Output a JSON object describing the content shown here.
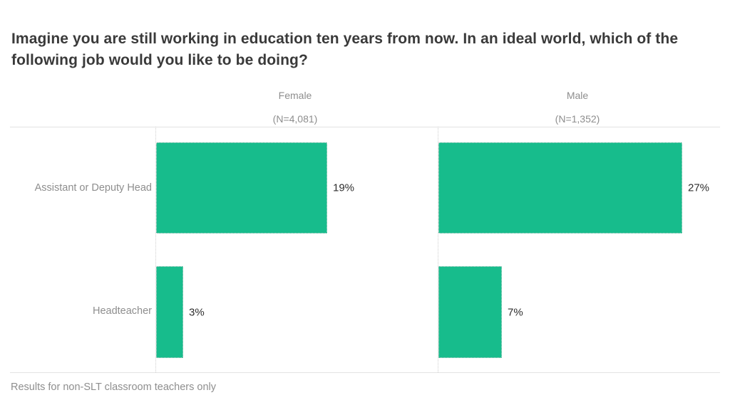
{
  "title": "Imagine you are still working in education ten years from now. In an ideal world, which of the following job would you like to be doing?",
  "footnote": "Results for non-SLT classroom teachers only",
  "colors": {
    "bar": "#17bc8c",
    "title_text": "#3a3a3a",
    "muted_text": "#8e8e8e",
    "value_text": "#2e2e2e",
    "grid_line": "#e3e3e3",
    "axis_dotted": "#cfcfcf",
    "background": "#ffffff"
  },
  "chart_data": {
    "type": "bar",
    "orientation": "horizontal",
    "title": "Imagine you are still working in education ten years from now. In an ideal world, which of the following job would you like to be doing?",
    "categories": [
      "Assistant or Deputy Head",
      "Headteacher"
    ],
    "series": [
      {
        "name": "Female",
        "n_label": "(N=4,081)",
        "values": [
          19,
          3
        ]
      },
      {
        "name": "Male",
        "n_label": "(N=1,352)",
        "values": [
          27,
          7
        ]
      }
    ],
    "value_suffix": "%",
    "xlim": [
      0,
      31
    ],
    "grid": "off",
    "legend": "none",
    "annotation": "Results for non-SLT classroom teachers only"
  }
}
